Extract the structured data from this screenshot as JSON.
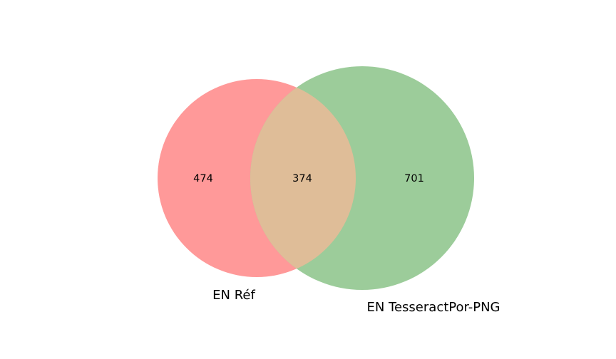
{
  "chart_data": {
    "type": "venn",
    "sets": [
      {
        "name": "EN Réf",
        "color": "#ff9999"
      },
      {
        "name": "EN TesseractPor-PNG",
        "color": "#9ccc9a"
      }
    ],
    "counts": {
      "left_only": "474",
      "intersection": "374",
      "right_only": "701"
    },
    "intersection_color": "#dfbd98"
  }
}
